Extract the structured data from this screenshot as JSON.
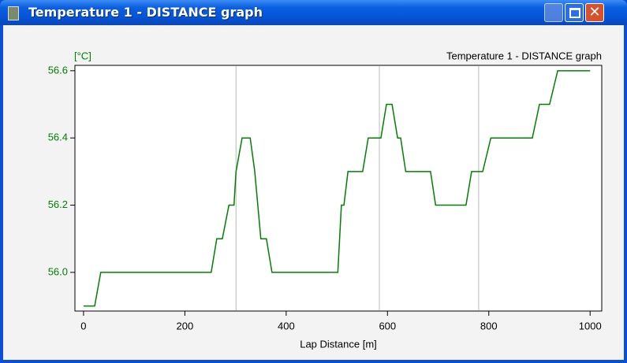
{
  "window": {
    "title": "Temperature 1 - DISTANCE graph"
  },
  "chart_data": {
    "type": "line",
    "title": "Temperature 1 - DISTANCE graph",
    "y_label": "[°C]",
    "x_label": "Lap Distance [m]",
    "color": "#008000",
    "x": [
      0,
      22,
      34,
      252,
      263,
      274,
      287,
      297,
      301,
      313,
      329,
      338,
      344,
      350,
      361,
      372,
      502,
      509,
      514,
      522,
      551,
      562,
      587,
      598,
      609,
      620,
      626,
      636,
      685,
      695,
      755,
      766,
      788,
      804,
      886,
      900,
      920,
      936,
      1000
    ],
    "values": [
      55.9,
      55.9,
      56.0,
      56.0,
      56.1,
      56.1,
      56.2,
      56.2,
      56.3,
      56.4,
      56.4,
      56.3,
      56.2,
      56.1,
      56.1,
      56.0,
      56.0,
      56.2,
      56.2,
      56.3,
      56.3,
      56.4,
      56.4,
      56.5,
      56.5,
      56.4,
      56.4,
      56.3,
      56.3,
      56.2,
      56.2,
      56.3,
      56.3,
      56.4,
      56.4,
      56.5,
      56.5,
      56.6,
      56.6
    ],
    "markers": [
      301,
      584,
      780
    ],
    "xlim": [
      -17,
      1023
    ],
    "ylim": [
      55.885,
      56.616
    ],
    "xticks": [
      0,
      200,
      400,
      600,
      800,
      1000
    ],
    "yticks": [
      {
        "value": 56,
        "label": "56.0"
      },
      56.2,
      56.4,
      56.6
    ]
  }
}
